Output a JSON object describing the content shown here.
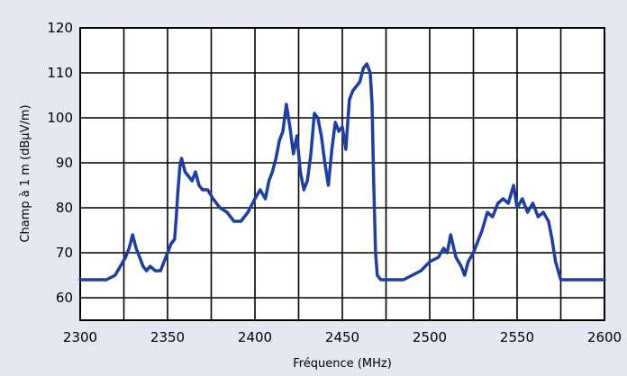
{
  "chart_data": {
    "type": "line",
    "title": "",
    "xlabel": "Fréquence (MHz)",
    "ylabel": "Champ à 1 m  (dBµV/m)",
    "xlim": [
      2300,
      2600
    ],
    "ylim": [
      55,
      120
    ],
    "x_ticks": [
      2300,
      2350,
      2400,
      2450,
      2500,
      2550,
      2600
    ],
    "y_ticks": [
      60,
      70,
      80,
      90,
      100,
      110,
      120
    ],
    "grid": true,
    "line_color": "#1f3fa0",
    "background_color": "#e6e8f1",
    "plot_background_color": "#ffffff",
    "series": [
      {
        "x": [
          2300,
          2305,
          2310,
          2315,
          2320,
          2323,
          2326,
          2328,
          2330,
          2332,
          2334,
          2336,
          2338,
          2340,
          2343,
          2346,
          2348,
          2350,
          2352,
          2354,
          2355,
          2356,
          2357,
          2358,
          2360,
          2362,
          2364,
          2366,
          2368,
          2370,
          2373,
          2376,
          2380,
          2384,
          2388,
          2392,
          2396,
          2400,
          2403,
          2406,
          2408,
          2410,
          2412,
          2414,
          2416,
          2418,
          2420,
          2422,
          2424,
          2426,
          2428,
          2430,
          2432,
          2434,
          2436,
          2438,
          2440,
          2442,
          2444,
          2446,
          2448,
          2450,
          2452,
          2454,
          2456,
          2458,
          2460,
          2462,
          2464,
          2466,
          2467,
          2468,
          2469,
          2470,
          2472,
          2474,
          2476,
          2480,
          2485,
          2490,
          2495,
          2500,
          2505,
          2508,
          2510,
          2512,
          2515,
          2518,
          2520,
          2522,
          2525,
          2528,
          2530,
          2533,
          2536,
          2539,
          2542,
          2545,
          2548,
          2550,
          2553,
          2556,
          2559,
          2562,
          2565,
          2568,
          2570,
          2572,
          2575,
          2580,
          2590,
          2600
        ],
        "y": [
          64,
          64,
          64,
          64,
          65,
          67,
          69,
          71,
          74,
          71,
          69,
          67,
          66,
          67,
          66,
          66,
          68,
          70,
          72,
          73,
          78,
          84,
          89,
          91,
          88,
          87,
          86,
          88,
          85,
          84,
          84,
          82,
          80,
          79,
          77,
          77,
          79,
          82,
          84,
          82,
          86,
          88,
          91,
          95,
          97,
          103,
          98,
          92,
          96,
          88,
          84,
          86,
          92,
          101,
          100,
          96,
          90,
          85,
          93,
          99,
          97,
          98,
          93,
          104,
          106,
          107,
          108,
          111,
          112,
          110,
          103,
          85,
          70,
          65,
          64,
          64,
          64,
          64,
          64,
          65,
          66,
          68,
          69,
          71,
          70,
          74,
          69,
          67,
          65,
          68,
          70,
          73,
          75,
          79,
          78,
          81,
          82,
          81,
          85,
          80,
          82,
          79,
          81,
          78,
          79,
          77,
          73,
          68,
          64,
          64,
          64,
          64
        ]
      }
    ]
  }
}
